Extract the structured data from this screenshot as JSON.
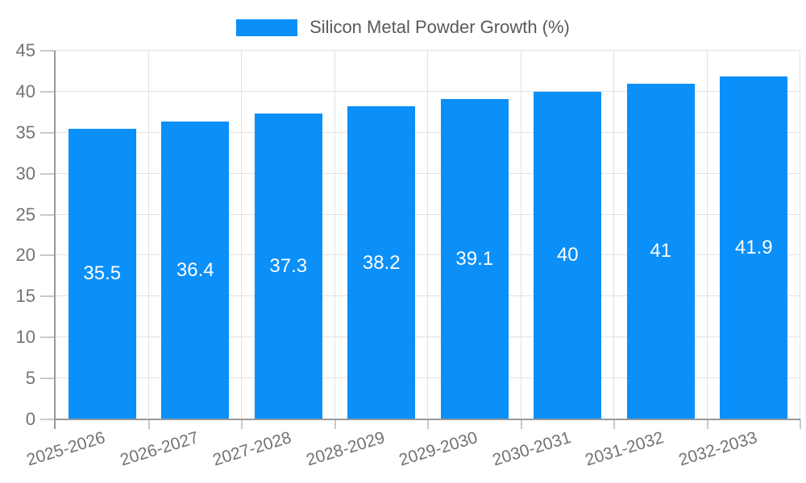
{
  "chart_data": {
    "type": "bar",
    "title": "Silicon Metal Powder Growth (%)",
    "categories": [
      "2025-2026",
      "2026-2027",
      "2027-2028",
      "2028-2029",
      "2029-2030",
      "2030-2031",
      "2031-2032",
      "2032-2033"
    ],
    "values": [
      35.5,
      36.4,
      37.3,
      38.2,
      39.1,
      40,
      41,
      41.9
    ],
    "xlabel": "",
    "ylabel": "",
    "ylim": [
      0,
      45
    ],
    "yticks": [
      0,
      5,
      10,
      15,
      20,
      25,
      30,
      35,
      40,
      45
    ],
    "grid": true,
    "legend_position": "top",
    "bar_labels_inside": true,
    "colors": {
      "bar": "#0b8ff8",
      "bar_label": "#ffffff",
      "axis": "#999999",
      "tick": "#c9c9c9",
      "gridline": "#e2e2e2",
      "tick_text": "#737373",
      "legend_text": "#595959",
      "background": "#ffffff"
    }
  }
}
